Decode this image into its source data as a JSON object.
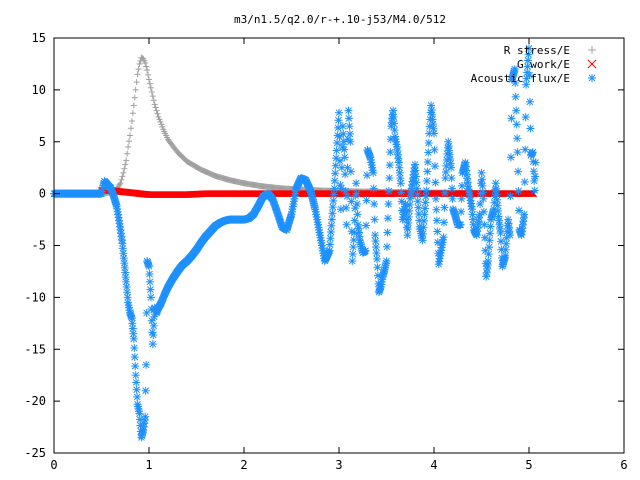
{
  "chart_data": {
    "type": "scatter",
    "title": "m3/n1.5/q2.0/r-+.10-j53/M4.0/512",
    "xlabel": "",
    "ylabel": "",
    "xlim": [
      0,
      6
    ],
    "ylim": [
      -25,
      15
    ],
    "xticks": [
      0,
      1,
      2,
      3,
      4,
      5,
      6
    ],
    "yticks": [
      -25,
      -20,
      -15,
      -10,
      -5,
      0,
      5,
      10,
      15
    ],
    "grid": false,
    "legend_position": "top-right",
    "series": [
      {
        "name": "R stress/E",
        "marker": "plus",
        "color": "#a0a0a0",
        "points": [
          [
            0.0,
            0
          ],
          [
            0.2,
            0
          ],
          [
            0.4,
            0
          ],
          [
            0.55,
            0.05
          ],
          [
            0.65,
            0.3
          ],
          [
            0.7,
            1.0
          ],
          [
            0.73,
            2.0
          ],
          [
            0.76,
            3.2
          ],
          [
            0.78,
            4.5
          ],
          [
            0.8,
            5.6
          ],
          [
            0.82,
            7.0
          ],
          [
            0.84,
            8.5
          ],
          [
            0.86,
            10.0
          ],
          [
            0.88,
            11.5
          ],
          [
            0.9,
            12.5
          ],
          [
            0.92,
            13.1
          ],
          [
            0.94,
            13.0
          ],
          [
            0.96,
            12.6
          ],
          [
            0.98,
            11.9
          ],
          [
            1.0,
            11.0
          ],
          [
            1.03,
            9.8
          ],
          [
            1.06,
            8.6
          ],
          [
            1.1,
            7.4
          ],
          [
            1.15,
            6.2
          ],
          [
            1.2,
            5.2
          ],
          [
            1.3,
            4.0
          ],
          [
            1.4,
            3.1
          ],
          [
            1.55,
            2.3
          ],
          [
            1.7,
            1.7
          ],
          [
            1.85,
            1.3
          ],
          [
            2.0,
            1.0
          ],
          [
            2.2,
            0.7
          ],
          [
            2.4,
            0.5
          ],
          [
            2.6,
            0.4
          ],
          [
            2.8,
            0.3
          ],
          [
            3.0,
            0.25
          ],
          [
            3.5,
            0.15
          ],
          [
            4.0,
            0.1
          ],
          [
            4.5,
            0.05
          ],
          [
            5.0,
            0.02
          ]
        ]
      },
      {
        "name": "G work/E",
        "marker": "cross",
        "color": "#ff0000",
        "points": [
          [
            0.5,
            0.3
          ],
          [
            0.6,
            0.3
          ],
          [
            0.7,
            0.2
          ],
          [
            0.8,
            0.1
          ],
          [
            0.9,
            0.0
          ],
          [
            1.0,
            -0.1
          ],
          [
            1.2,
            -0.1
          ],
          [
            1.4,
            -0.1
          ],
          [
            1.6,
            0.0
          ],
          [
            1.8,
            0.0
          ],
          [
            2.0,
            0.0
          ],
          [
            2.2,
            0.0
          ],
          [
            2.4,
            0.0
          ],
          [
            2.6,
            0.0
          ],
          [
            2.8,
            0.0
          ],
          [
            3.0,
            0.0
          ],
          [
            3.2,
            0.0
          ],
          [
            3.4,
            0.0
          ],
          [
            3.6,
            0.0
          ],
          [
            3.8,
            0.0
          ],
          [
            4.0,
            0.0
          ],
          [
            4.2,
            0.0
          ],
          [
            4.4,
            0.0
          ],
          [
            4.6,
            0.0
          ],
          [
            4.8,
            0.0
          ],
          [
            5.0,
            0.0
          ],
          [
            5.05,
            0.0
          ]
        ]
      },
      {
        "name": "Acoustic flux/E",
        "marker": "star",
        "color": "#1e90ff",
        "points": [
          [
            0.0,
            0
          ],
          [
            0.1,
            0
          ],
          [
            0.2,
            0
          ],
          [
            0.3,
            0
          ],
          [
            0.4,
            0
          ],
          [
            0.5,
            0
          ],
          [
            0.53,
            1.2
          ],
          [
            0.57,
            0.8
          ],
          [
            0.6,
            0.5
          ],
          [
            0.63,
            -0.3
          ],
          [
            0.66,
            -1.2
          ],
          [
            0.68,
            -2.3
          ],
          [
            0.7,
            -3.5
          ],
          [
            0.72,
            -4.8
          ],
          [
            0.74,
            -6.7
          ],
          [
            0.76,
            -8.5
          ],
          [
            0.78,
            -10.5
          ],
          [
            0.8,
            -11.5
          ],
          [
            0.82,
            -12.0
          ],
          [
            0.84,
            -14.0
          ],
          [
            0.86,
            -17.5
          ],
          [
            0.88,
            -20.3
          ],
          [
            0.9,
            -21.2
          ],
          [
            0.92,
            -23.5
          ],
          [
            0.94,
            -22.8
          ],
          [
            0.96,
            -21.5
          ],
          [
            0.97,
            -16.5
          ],
          [
            0.98,
            -6.5
          ],
          [
            1.0,
            -7.0
          ],
          [
            1.02,
            -10.0
          ],
          [
            1.04,
            -14.5
          ],
          [
            1.06,
            -11.0
          ],
          [
            1.08,
            -11.5
          ],
          [
            1.1,
            -11.0
          ],
          [
            1.13,
            -10.5
          ],
          [
            1.16,
            -9.8
          ],
          [
            1.2,
            -9.0
          ],
          [
            1.25,
            -8.2
          ],
          [
            1.3,
            -7.5
          ],
          [
            1.35,
            -6.9
          ],
          [
            1.4,
            -6.5
          ],
          [
            1.45,
            -6.0
          ],
          [
            1.5,
            -5.4
          ],
          [
            1.55,
            -4.7
          ],
          [
            1.6,
            -4.1
          ],
          [
            1.65,
            -3.6
          ],
          [
            1.7,
            -3.1
          ],
          [
            1.75,
            -2.8
          ],
          [
            1.8,
            -2.6
          ],
          [
            1.85,
            -2.5
          ],
          [
            1.9,
            -2.5
          ],
          [
            1.95,
            -2.5
          ],
          [
            2.0,
            -2.5
          ],
          [
            2.05,
            -2.4
          ],
          [
            2.1,
            -2.0
          ],
          [
            2.15,
            -1.2
          ],
          [
            2.2,
            -0.3
          ],
          [
            2.25,
            0.0
          ],
          [
            2.3,
            -0.5
          ],
          [
            2.35,
            -1.8
          ],
          [
            2.4,
            -3.2
          ],
          [
            2.45,
            -3.5
          ],
          [
            2.5,
            -2.0
          ],
          [
            2.55,
            0.5
          ],
          [
            2.6,
            1.5
          ],
          [
            2.65,
            1.3
          ],
          [
            2.7,
            0.3
          ],
          [
            2.75,
            -1.5
          ],
          [
            2.8,
            -4.0
          ],
          [
            2.85,
            -6.5
          ],
          [
            2.9,
            -5.5
          ],
          [
            2.95,
            0.5
          ],
          [
            3.0,
            7.8
          ],
          [
            3.02,
            -1.5
          ],
          [
            3.04,
            6.5
          ],
          [
            3.06,
            3.5
          ],
          [
            3.08,
            -3.0
          ],
          [
            3.1,
            8.0
          ],
          [
            3.12,
            5.0
          ],
          [
            3.14,
            -6.5
          ],
          [
            3.16,
            -3.8
          ],
          [
            3.18,
            1.0
          ],
          [
            3.2,
            -3.0
          ],
          [
            3.22,
            -4.5
          ],
          [
            3.25,
            -5.7
          ],
          [
            3.28,
            -5.5
          ],
          [
            3.3,
            4.2
          ],
          [
            3.33,
            3.5
          ],
          [
            3.36,
            2.0
          ],
          [
            3.38,
            -4.0
          ],
          [
            3.4,
            -6.3
          ],
          [
            3.42,
            -9.5
          ],
          [
            3.44,
            -9.0
          ],
          [
            3.46,
            -8.0
          ],
          [
            3.48,
            -7.3
          ],
          [
            3.5,
            -6.5
          ],
          [
            3.52,
            -1.0
          ],
          [
            3.55,
            6.5
          ],
          [
            3.57,
            8.0
          ],
          [
            3.59,
            5.5
          ],
          [
            3.61,
            4.5
          ],
          [
            3.63,
            3.0
          ],
          [
            3.65,
            1.0
          ],
          [
            3.67,
            -2.5
          ],
          [
            3.7,
            -1.0
          ],
          [
            3.72,
            -4.0
          ],
          [
            3.75,
            -0.5
          ],
          [
            3.78,
            1.5
          ],
          [
            3.8,
            2.8
          ],
          [
            3.82,
            0.5
          ],
          [
            3.85,
            -3.2
          ],
          [
            3.88,
            -4.5
          ],
          [
            3.9,
            -2.0
          ],
          [
            3.92,
            0.3
          ],
          [
            3.95,
            5.8
          ],
          [
            3.97,
            8.5
          ],
          [
            4.0,
            5.8
          ],
          [
            4.02,
            -0.5
          ],
          [
            4.05,
            -6.8
          ],
          [
            4.08,
            -5.2
          ],
          [
            4.1,
            -4.2
          ],
          [
            4.12,
            1.5
          ],
          [
            4.15,
            5.0
          ],
          [
            4.18,
            2.5
          ],
          [
            4.2,
            -1.5
          ],
          [
            4.22,
            -2.0
          ],
          [
            4.25,
            -3.0
          ],
          [
            4.28,
            -3.0
          ],
          [
            4.3,
            2.0
          ],
          [
            4.33,
            3.0
          ],
          [
            4.36,
            0.7
          ],
          [
            4.4,
            -1.5
          ],
          [
            4.42,
            -3.5
          ],
          [
            4.45,
            -4.0
          ],
          [
            4.48,
            -2.0
          ],
          [
            4.5,
            2.0
          ],
          [
            4.52,
            -0.5
          ],
          [
            4.55,
            -8.0
          ],
          [
            4.57,
            -6.5
          ],
          [
            4.6,
            -2.5
          ],
          [
            4.63,
            -1.5
          ],
          [
            4.65,
            1.0
          ],
          [
            4.68,
            -2.2
          ],
          [
            4.7,
            -3.8
          ],
          [
            4.72,
            -7.0
          ],
          [
            4.75,
            -6.0
          ],
          [
            4.78,
            -2.5
          ],
          [
            4.8,
            -4.0
          ],
          [
            4.82,
            11.0
          ],
          [
            4.85,
            12.0
          ],
          [
            4.88,
            4.0
          ],
          [
            4.9,
            -3.5
          ],
          [
            4.92,
            -4.0
          ],
          [
            4.95,
            -2.0
          ],
          [
            4.97,
            10.5
          ],
          [
            5.0,
            14.0
          ],
          [
            5.02,
            3.7
          ],
          [
            5.04,
            4.0
          ],
          [
            5.06,
            0.3
          ],
          [
            5.07,
            3.0
          ]
        ]
      }
    ]
  }
}
